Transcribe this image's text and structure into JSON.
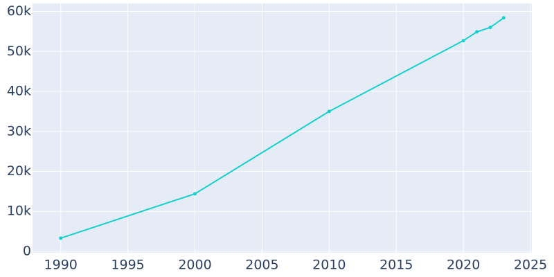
{
  "chart_data": {
    "type": "line",
    "x": [
      1990,
      2000,
      2010,
      2020,
      2021,
      2022,
      2023
    ],
    "series": [
      {
        "color": "#17cfcf",
        "values": [
          3300,
          14400,
          35000,
          52700,
          54900,
          56000,
          58400
        ]
      }
    ],
    "xlim": [
      1987.9,
      2025.1
    ],
    "xticks": [
      1990,
      1995,
      2000,
      2005,
      2010,
      2015,
      2020,
      2025
    ],
    "ylim": [
      -350,
      62000
    ],
    "yticks": [
      0,
      {
        "value": 10000,
        "label": "10k"
      },
      {
        "value": 20000,
        "label": "20k"
      },
      {
        "value": 30000,
        "label": "30k"
      },
      {
        "value": 40000,
        "label": "40k"
      },
      {
        "value": 50000,
        "label": "50k"
      },
      {
        "value": 60000,
        "label": "60k"
      }
    ],
    "grid": true
  }
}
